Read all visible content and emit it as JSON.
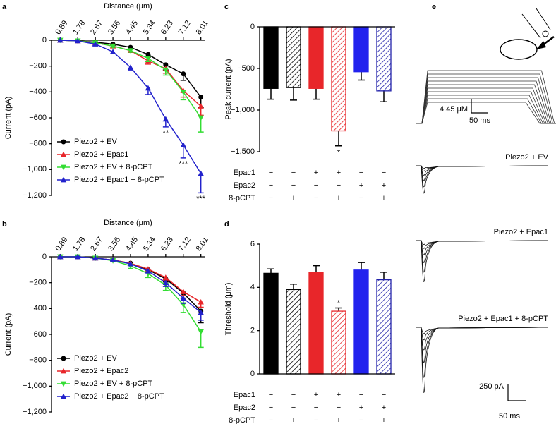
{
  "chart_data": [
    {
      "type": "line",
      "panel": "a",
      "xlabel": "Distance (μm)",
      "ylabel": "Current (pA)",
      "x": [
        0.89,
        1.78,
        2.67,
        3.56,
        4.45,
        5.34,
        6.23,
        7.12,
        8.01
      ],
      "xlim": [
        0.45,
        8.2
      ],
      "xticks": [
        0.89,
        1.78,
        2.67,
        3.56,
        4.45,
        5.34,
        6.23,
        7.12,
        8.01
      ],
      "ylim": [
        -1200,
        0
      ],
      "yticks": [
        0,
        {
          "value": -200,
          "label": "−200"
        },
        {
          "value": -400,
          "label": "−400"
        },
        {
          "value": -600,
          "label": "−600"
        },
        {
          "value": -800,
          "label": "−800"
        },
        {
          "value": -1000,
          "label": "−1,000"
        },
        {
          "value": -1200,
          "label": "−1,200"
        }
      ],
      "legend": "lower left",
      "series": [
        {
          "name": "Piezo2 + EV",
          "color": "#000000",
          "marker": "circle",
          "values": [
            0,
            -5,
            -15,
            -30,
            -55,
            -110,
            -190,
            -260,
            -440
          ],
          "errors": [
            0,
            3,
            5,
            8,
            10,
            20,
            40,
            50,
            80
          ]
        },
        {
          "name": "Piezo2 + Epac1",
          "color": "#e8262a",
          "marker": "triangle-up",
          "values": [
            0,
            -5,
            -20,
            -45,
            -80,
            -160,
            -220,
            -390,
            -510
          ],
          "errors": [
            0,
            3,
            5,
            8,
            12,
            25,
            35,
            50,
            70
          ]
        },
        {
          "name": "Piezo2 + EV + 8-pCPT",
          "color": "#33dd33",
          "marker": "triangle-down",
          "values": [
            0,
            -5,
            -20,
            -45,
            -80,
            -140,
            -230,
            -400,
            -600
          ],
          "errors": [
            0,
            3,
            5,
            8,
            12,
            25,
            40,
            60,
            110
          ]
        },
        {
          "name": "Piezo2 + Epac1 + 8-pCPT",
          "color": "#2222cc",
          "marker": "triangle-up",
          "values": [
            0,
            -5,
            -30,
            -90,
            -210,
            -370,
            -610,
            -810,
            -1030
          ],
          "errors": [
            0,
            5,
            10,
            15,
            20,
            50,
            60,
            100,
            150
          ],
          "significance": [
            null,
            null,
            null,
            null,
            null,
            null,
            "**",
            "***",
            "***"
          ]
        }
      ]
    },
    {
      "type": "line",
      "panel": "b",
      "xlabel": "Distance (μm)",
      "ylabel": "Current (pA)",
      "x": [
        0.89,
        1.78,
        2.67,
        3.56,
        4.45,
        5.34,
        6.23,
        7.12,
        8.01
      ],
      "xlim": [
        0.45,
        8.2
      ],
      "xticks": [
        0.89,
        1.78,
        2.67,
        3.56,
        4.45,
        5.34,
        6.23,
        7.12,
        8.01
      ],
      "ylim": [
        -1200,
        0
      ],
      "yticks": [
        0,
        {
          "value": -200,
          "label": "−200"
        },
        {
          "value": -400,
          "label": "−400"
        },
        {
          "value": -600,
          "label": "−600"
        },
        {
          "value": -800,
          "label": "−800"
        },
        {
          "value": -1000,
          "label": "−1,000"
        },
        {
          "value": -1200,
          "label": "−1,200"
        }
      ],
      "legend": "lower left",
      "series": [
        {
          "name": "Piezo2 + EV",
          "color": "#000000",
          "marker": "circle",
          "values": [
            0,
            0,
            -10,
            -25,
            -50,
            -100,
            -170,
            -280,
            -420
          ],
          "errors": [
            0,
            2,
            4,
            6,
            10,
            15,
            25,
            40,
            90
          ]
        },
        {
          "name": "Piezo2 + Epac2",
          "color": "#e8262a",
          "marker": "triangle-up",
          "values": [
            0,
            0,
            -10,
            -25,
            -50,
            -95,
            -160,
            -270,
            -350
          ],
          "errors": [
            0,
            2,
            4,
            6,
            10,
            15,
            20,
            30,
            40
          ]
        },
        {
          "name": "Piezo2 + EV + 8-pCPT",
          "color": "#33dd33",
          "marker": "triangle-down",
          "values": [
            0,
            0,
            -10,
            -30,
            -70,
            -130,
            -220,
            -370,
            -580
          ],
          "errors": [
            0,
            2,
            4,
            8,
            20,
            30,
            40,
            60,
            120
          ]
        },
        {
          "name": "Piezo2 + Epac2 + 8-pCPT",
          "color": "#2222cc",
          "marker": "triangle-up",
          "values": [
            0,
            0,
            -10,
            -25,
            -55,
            -110,
            -200,
            -320,
            -430
          ],
          "errors": [
            0,
            2,
            4,
            6,
            10,
            15,
            30,
            40,
            60
          ]
        }
      ]
    },
    {
      "type": "bar",
      "panel": "c",
      "ylabel": "Peak current (pA)",
      "ylim": [
        -1500,
        0
      ],
      "yticks": [
        0,
        {
          "value": -500,
          "label": "−500"
        },
        {
          "value": -1000,
          "label": "−1,000"
        },
        {
          "value": -1500,
          "label": "−1,500"
        }
      ],
      "values": [
        -740,
        -730,
        -740,
        -1250,
        -540,
        -770
      ],
      "errors": [
        130,
        150,
        130,
        180,
        100,
        130
      ],
      "colors": [
        "#000000",
        "#000000",
        "#e8262a",
        "#e8262a",
        "#2222ee",
        "#2222aa"
      ],
      "hatched": [
        false,
        true,
        false,
        true,
        false,
        true
      ],
      "significance": [
        null,
        null,
        null,
        "*",
        null,
        null
      ],
      "conditions": [
        {
          "name": "Epac1",
          "color": "#e8262a",
          "signs": [
            "−",
            "−",
            "+",
            "+",
            "−",
            "−"
          ]
        },
        {
          "name": "Epac2",
          "color": "#2222cc",
          "signs": [
            "−",
            "−",
            "−",
            "−",
            "+",
            "+"
          ]
        },
        {
          "name": "8-pCPT",
          "color": "#000000",
          "signs": [
            "−",
            "+",
            "−",
            "+",
            "−",
            "+"
          ]
        }
      ]
    },
    {
      "type": "bar",
      "panel": "d",
      "ylabel": "Threshold (μm)",
      "ylim": [
        0,
        6
      ],
      "yticks": [
        0,
        2,
        4,
        6
      ],
      "values": [
        4.65,
        3.9,
        4.7,
        2.9,
        4.8,
        4.35
      ],
      "errors": [
        0.2,
        0.25,
        0.3,
        0.15,
        0.35,
        0.35
      ],
      "colors": [
        "#000000",
        "#000000",
        "#e8262a",
        "#e8262a",
        "#2222ee",
        "#2222aa"
      ],
      "hatched": [
        false,
        true,
        false,
        true,
        false,
        true
      ],
      "significance": [
        null,
        null,
        null,
        "*",
        null,
        null
      ],
      "conditions": [
        {
          "name": "Epac1",
          "color": "#e8262a",
          "signs": [
            "−",
            "−",
            "+",
            "+",
            "−",
            "−"
          ]
        },
        {
          "name": "Epac2",
          "color": "#2222cc",
          "signs": [
            "−",
            "−",
            "−",
            "−",
            "+",
            "+"
          ]
        },
        {
          "name": "8-pCPT",
          "color": "#000000",
          "signs": [
            "−",
            "+",
            "−",
            "+",
            "−",
            "+"
          ]
        }
      ]
    }
  ],
  "panel_e": {
    "panel": "e",
    "stimulus_scale": "4.45 μM",
    "stimulus_time": "50 ms",
    "traces": [
      "Piezo2 + EV",
      "Piezo2 + Epac1",
      "Piezo2 + Epac1 + 8-pCPT"
    ],
    "current_scale": "250 pA",
    "current_time": "50 ms"
  }
}
